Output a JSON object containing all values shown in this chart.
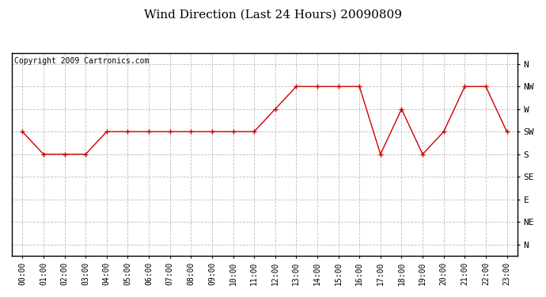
{
  "title": "Wind Direction (Last 24 Hours) 20090809",
  "copyright": "Copyright 2009 Cartronics.com",
  "x_labels": [
    "00:00",
    "01:00",
    "02:00",
    "03:00",
    "04:00",
    "05:00",
    "06:00",
    "07:00",
    "08:00",
    "09:00",
    "10:00",
    "11:00",
    "12:00",
    "13:00",
    "14:00",
    "15:00",
    "16:00",
    "17:00",
    "18:00",
    "19:00",
    "20:00",
    "21:00",
    "22:00",
    "23:00"
  ],
  "y_labels": [
    "N",
    "NW",
    "W",
    "SW",
    "S",
    "SE",
    "E",
    "NE",
    "N"
  ],
  "y_values": [
    8,
    7,
    6,
    5,
    4,
    3,
    2,
    1,
    0
  ],
  "wind_data": [
    5,
    4,
    4,
    4,
    5,
    5,
    5,
    5,
    5,
    5,
    5,
    5,
    6,
    7,
    7,
    7,
    7,
    4,
    6,
    4,
    5,
    7,
    7,
    5
  ],
  "line_color": "#cc0000",
  "marker": "+",
  "bg_color": "#ffffff",
  "plot_bg_color": "#ffffff",
  "grid_color": "#bbbbbb",
  "title_fontsize": 11,
  "copyright_fontsize": 7,
  "tick_fontsize": 8,
  "xtick_fontsize": 7
}
